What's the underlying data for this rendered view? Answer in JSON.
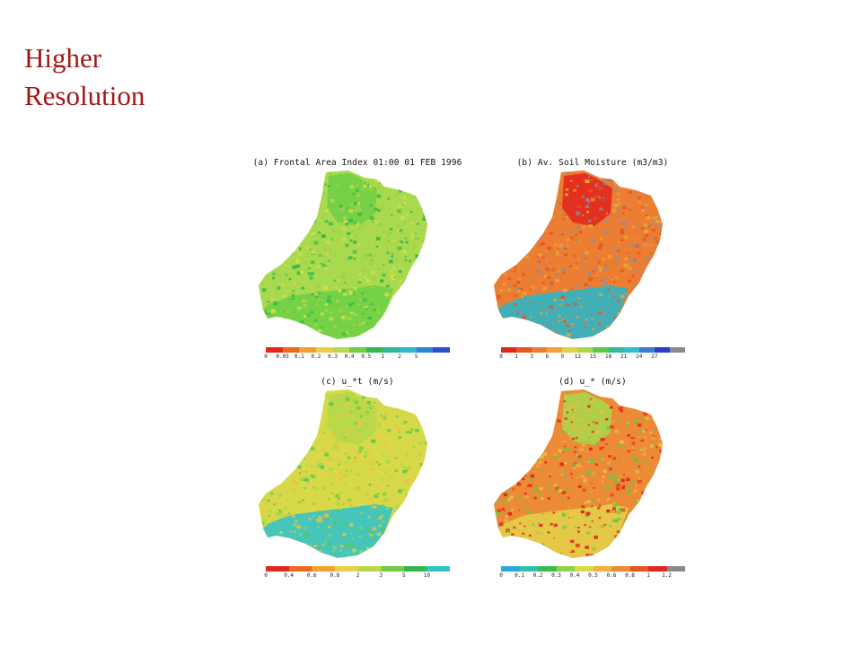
{
  "slide": {
    "title_line1": "Higher",
    "title_line2": "Resolution"
  },
  "panels": [
    {
      "id": "a",
      "title": "(a) Frontal Area Index 01:00 01 FEB 1996",
      "base_colour": "#a9d94f",
      "region_colours": {
        "north": "#6fcf45",
        "south": "#6fcf45",
        "speckle": [
          "#38b84a",
          "#d8de4a",
          "#9fd24c"
        ]
      },
      "legend_colours": [
        "#e0281e",
        "#ea6a1f",
        "#f0a22e",
        "#e9d04a",
        "#b9d84b",
        "#72cc45",
        "#34b84e",
        "#33b59a",
        "#2db8cc",
        "#3184d2",
        "#2c4fd0"
      ],
      "legend_ticks": [
        "0",
        "0.05",
        "0.1",
        "0.2",
        "0.3",
        "0.4",
        "0.5",
        "1",
        "2",
        "5"
      ]
    },
    {
      "id": "b",
      "title": "(b) Av. Soil Moisture (m3/m3)",
      "base_colour": "#ec7e33",
      "region_colours": {
        "north": "#e2221c",
        "south": "#2fb6c4",
        "speckle": [
          "#e4551f",
          "#f0a533",
          "#8f8e9a"
        ]
      },
      "legend_colours": [
        "#e0281e",
        "#e6561f",
        "#ec7e33",
        "#f0a533",
        "#e2cf48",
        "#a6d84c",
        "#5cc94a",
        "#36b8a0",
        "#2ec0d0",
        "#3a7ad0",
        "#2f3bc8",
        "#8a8a8a"
      ],
      "legend_ticks": [
        "0",
        "1",
        "3",
        "6",
        "9",
        "12",
        "15",
        "18",
        "21",
        "24",
        "27"
      ]
    },
    {
      "id": "c",
      "title": "(c) u_*t (m/s)",
      "base_colour": "#d7d948",
      "region_colours": {
        "north": "#b4d84b",
        "south": "#36c2c8",
        "speckle": [
          "#57c94a",
          "#aad74c",
          "#f0c244"
        ]
      },
      "legend_colours": [
        "#e0281e",
        "#ea6a1f",
        "#f0a22e",
        "#e9d04a",
        "#b9d84b",
        "#72cc45",
        "#34b84e",
        "#33c2c8"
      ],
      "legend_ticks": [
        "0",
        "0.4",
        "0.6",
        "0.8",
        "2",
        "3",
        "5",
        "10"
      ]
    },
    {
      "id": "d",
      "title": "(d) u_* (m/s)",
      "base_colour": "#ec8a36",
      "region_colours": {
        "north": "#a8d84b",
        "south": "#e2cf48",
        "speckle": [
          "#e2261c",
          "#5fcb49",
          "#e9c04a"
        ]
      },
      "legend_colours": [
        "#28a8e0",
        "#2fbfb0",
        "#3fb84a",
        "#8fd24a",
        "#d9d94a",
        "#f0b23a",
        "#ec8a36",
        "#e6541f",
        "#e0281e",
        "#8a8a8a"
      ],
      "legend_ticks": [
        "0",
        "0.1",
        "0.2",
        "0.3",
        "0.4",
        "0.5",
        "0.6",
        "0.8",
        "1",
        "1.2"
      ]
    }
  ]
}
